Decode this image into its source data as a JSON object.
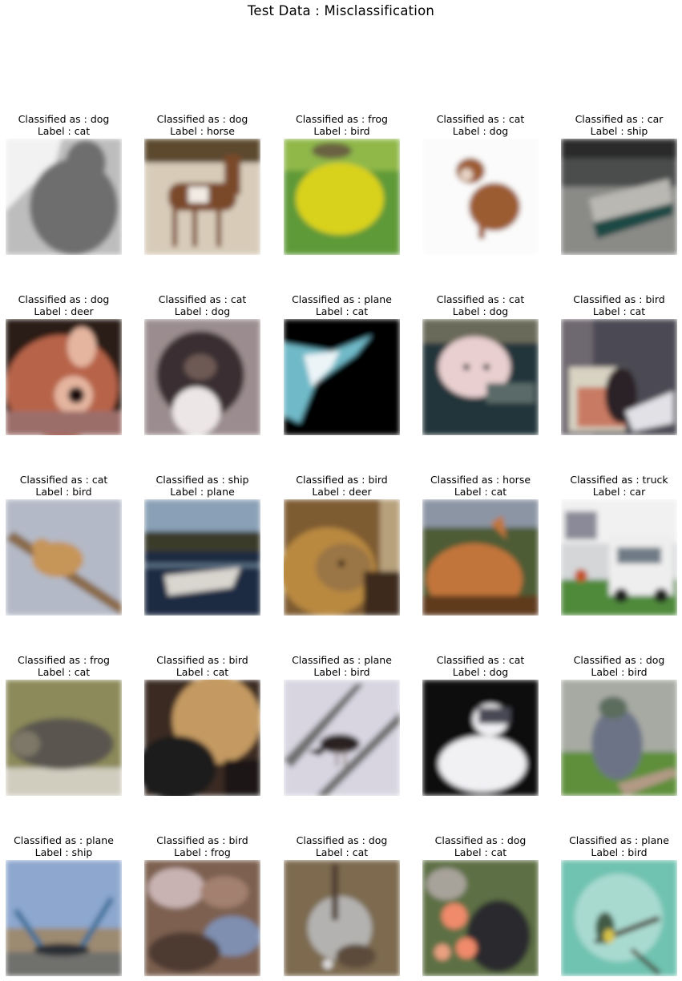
{
  "title": "Test Data : Misclassification",
  "items": [
    {
      "classified": "Classified as : dog",
      "label": "Label : cat",
      "bg": "#bdbdbd",
      "fg": "#6e6e6e",
      "accent": "#f2f2f2"
    },
    {
      "classified": "Classified as : dog",
      "label": "Label : horse",
      "bg": "#d8ccb9",
      "fg": "#7a4a2c",
      "accent": "#f1ece4"
    },
    {
      "classified": "Classified as : frog",
      "label": "Label : bird",
      "bg": "#5e9a37",
      "fg": "#d9d21d",
      "accent": "#8fb84a"
    },
    {
      "classified": "Classified as : cat",
      "label": "Label : dog",
      "bg": "#fbfbfb",
      "fg": "#9c5c32",
      "accent": "#e7d3c4"
    },
    {
      "classified": "Classified as : car",
      "label": "Label : ship",
      "bg": "#4b4d4e",
      "fg": "#1f4a45",
      "accent": "#b9b8b3"
    },
    {
      "classified": "Classified as : dog",
      "label": "Label : deer",
      "bg": "#2a1a14",
      "fg": "#b7644a",
      "accent": "#e5b59f"
    },
    {
      "classified": "Classified as : cat",
      "label": "Label : dog",
      "bg": "#9b8d8f",
      "fg": "#3a2e32",
      "accent": "#ece6e6"
    },
    {
      "classified": "Classified as : plane",
      "label": "Label : cat",
      "bg": "#050505",
      "fg": "#6fb9c8",
      "accent": "#ecf4f7"
    },
    {
      "classified": "Classified as : cat",
      "label": "Label : dog",
      "bg": "#23353a",
      "fg": "#e9cfcf",
      "accent": "#5a6b67"
    },
    {
      "classified": "Classified as : bird",
      "label": "Label : cat",
      "bg": "#4c4a52",
      "fg": "#2a2428",
      "accent": "#c97a64"
    },
    {
      "classified": "Classified as : cat",
      "label": "Label : bird",
      "bg": "#b3b9c6",
      "fg": "#c69559",
      "accent": "#8a6a4a"
    },
    {
      "classified": "Classified as : ship",
      "label": "Label : plane",
      "bg": "#1c2b43",
      "fg": "#d9d5cf",
      "accent": "#5f7489"
    },
    {
      "classified": "Classified as : bird",
      "label": "Label : deer",
      "bg": "#7e5b33",
      "fg": "#b9893f",
      "accent": "#3d2b1d"
    },
    {
      "classified": "Classified as : horse",
      "label": "Label : cat",
      "bg": "#4e5b35",
      "fg": "#c2743a",
      "accent": "#8b95a4"
    },
    {
      "classified": "Classified as : truck",
      "label": "Label : car",
      "bg": "#d4d6d8",
      "fg": "#eeeeee",
      "accent": "#4f8a3b"
    },
    {
      "classified": "Classified as : frog",
      "label": "Label : cat",
      "bg": "#8c8a5a",
      "fg": "#5a5750",
      "accent": "#d0cdbf"
    },
    {
      "classified": "Classified as : bird",
      "label": "Label : cat",
      "bg": "#3a2a22",
      "fg": "#c49a62",
      "accent": "#1c1a1c"
    },
    {
      "classified": "Classified as : plane",
      "label": "Label : bird",
      "bg": "#d8d5e1",
      "fg": "#2a2022",
      "accent": "#707070"
    },
    {
      "classified": "Classified as : cat",
      "label": "Label : dog",
      "bg": "#0c0b0f",
      "fg": "#f1f1f4",
      "accent": "#4a4a55"
    },
    {
      "classified": "Classified as : dog",
      "label": "Label : bird",
      "bg": "#a7aaa3",
      "fg": "#6c7386",
      "accent": "#5e8f3a"
    },
    {
      "classified": "Classified as : plane",
      "label": "Label : ship",
      "bg": "#8da7cf",
      "fg": "#2a2f35",
      "accent": "#9c8a71"
    },
    {
      "classified": "Classified as : bird",
      "label": "Label : frog",
      "bg": "#7d6050",
      "fg": "#c9b3b2",
      "accent": "#7e8fb0"
    },
    {
      "classified": "Classified as : dog",
      "label": "Label : cat",
      "bg": "#7d6a50",
      "fg": "#b4b2b0",
      "accent": "#5c4c3a"
    },
    {
      "classified": "Classified as : dog",
      "label": "Label : cat",
      "bg": "#5d6f44",
      "fg": "#f08a6a",
      "accent": "#2a2a2e"
    },
    {
      "classified": "Classified as : plane",
      "label": "Label : bird",
      "bg": "#6fc2b1",
      "fg": "#3f5a45",
      "accent": "#d8efe9"
    }
  ]
}
